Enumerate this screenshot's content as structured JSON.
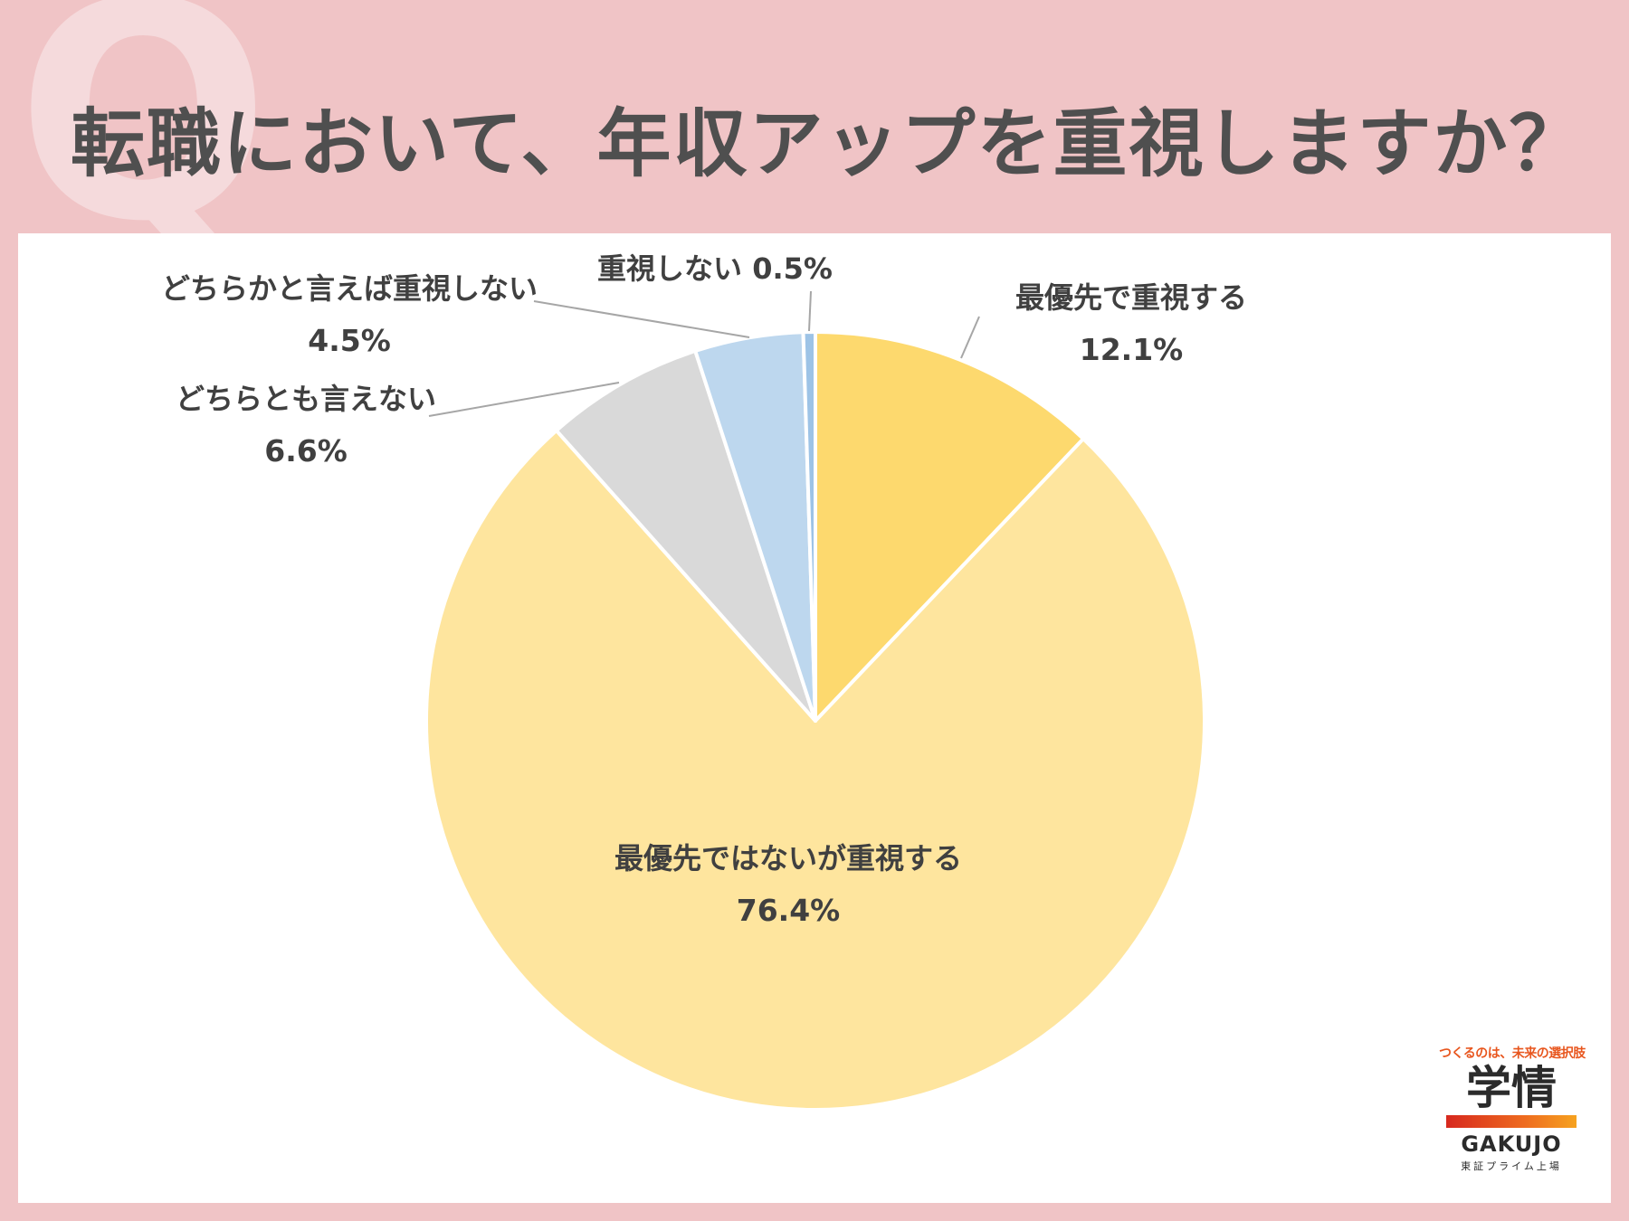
{
  "header": {
    "q_mark": "Q",
    "title": "転職において、年収アップを重視しますか？"
  },
  "colors": {
    "background": "#f0c4c6",
    "slice_top_priority": "#fdd96e",
    "slice_important": "#fee59e",
    "slice_neutral": "#d9d9d9",
    "slice_somewhat_not": "#bdd7ee",
    "slice_not": "#9dc3e6"
  },
  "chart_data": {
    "type": "pie",
    "title": "",
    "start": "12 o'clock, clockwise",
    "slices": [
      {
        "label": "最優先で重視する",
        "value": 12.1,
        "value_label": "12.1%",
        "color": "#fdd96e"
      },
      {
        "label": "最優先ではないが重視する",
        "value": 76.4,
        "value_label": "76.4%",
        "color": "#fee59e"
      },
      {
        "label": "どちらとも言えない",
        "value": 6.6,
        "value_label": "6.6%",
        "color": "#d9d9d9"
      },
      {
        "label": "どちらかと言えば重視しない",
        "value": 4.5,
        "value_label": "4.5%",
        "color": "#bdd7ee"
      },
      {
        "label": "重視しない",
        "value": 0.5,
        "value_label": "0.5%",
        "color": "#9dc3e6"
      }
    ]
  },
  "logo": {
    "tagline": "つくるのは、未来の選択肢",
    "kanji": "学情",
    "english": "GAKUJO",
    "listing": "東証プライム上場"
  }
}
